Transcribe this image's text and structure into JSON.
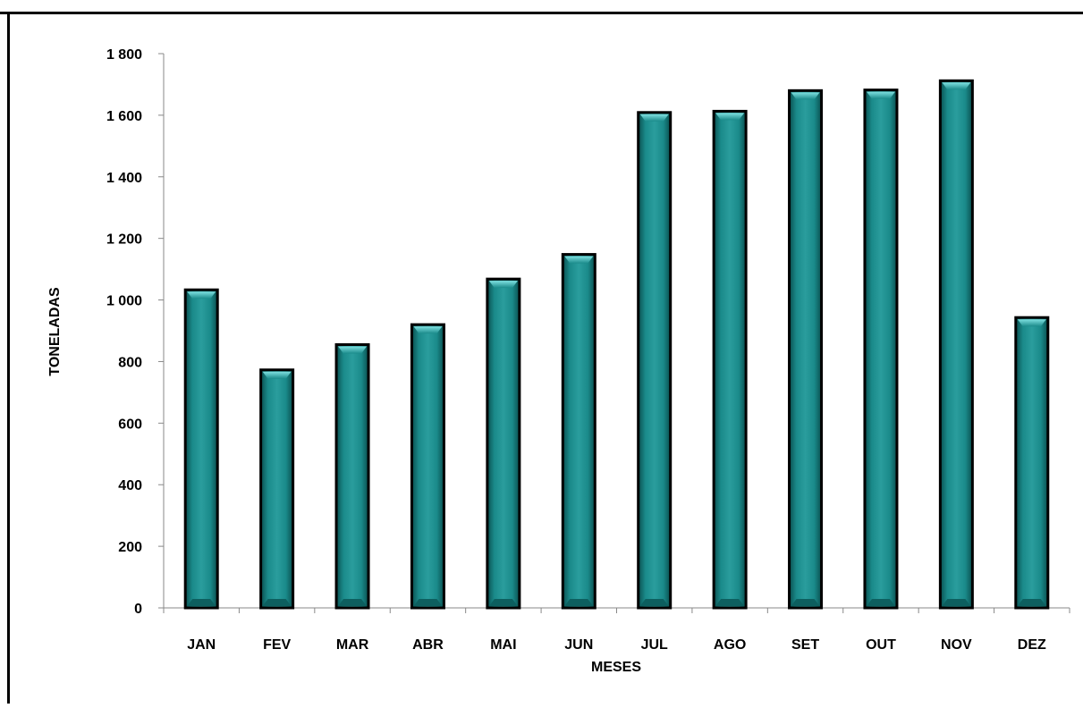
{
  "chart_data": {
    "type": "bar",
    "title": "",
    "xlabel": "MESES",
    "ylabel": "TONELADAS",
    "categories": [
      "JAN",
      "FEV",
      "MAR",
      "ABR",
      "MAI",
      "JUN",
      "JUL",
      "AGO",
      "SET",
      "OUT",
      "NOV",
      "DEZ"
    ],
    "values": [
      1033,
      773,
      855,
      920,
      1068,
      1148,
      1609,
      1613,
      1680,
      1682,
      1712,
      943
    ],
    "ylim": [
      0,
      1800
    ],
    "yticks": [
      0,
      200,
      400,
      600,
      800,
      1000,
      1200,
      1400,
      1600,
      1800
    ],
    "ytick_labels": [
      "0",
      "200",
      "400",
      "600",
      "800",
      "1 000",
      "1 200",
      "1 400",
      "1 600",
      "1 800"
    ],
    "grid": false,
    "legend": "none",
    "colors": {
      "bar_fill": "#1a7f7f",
      "bar_highlight": "#5fc8c8",
      "bar_edge": "#000000",
      "axis": "#888888"
    }
  }
}
